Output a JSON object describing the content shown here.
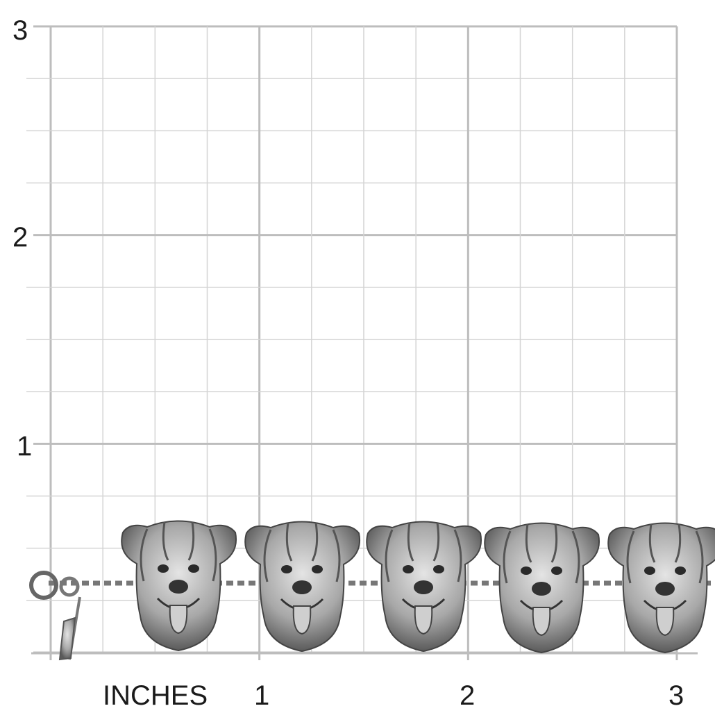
{
  "y_axis_labels": [
    "3",
    "2",
    "1"
  ],
  "x_axis_unit": "INCHES",
  "x_axis_labels": [
    "1",
    "2",
    "3"
  ],
  "grid": {
    "major_color": "#bdbdbd",
    "minor_color": "#d4d4d4",
    "subdivisions_per_inch": 4
  },
  "product": {
    "icon": "dog-head-link-bracelet",
    "link_count": 5,
    "charm": "bone-charm",
    "metal_color": "#9a9a9a"
  }
}
